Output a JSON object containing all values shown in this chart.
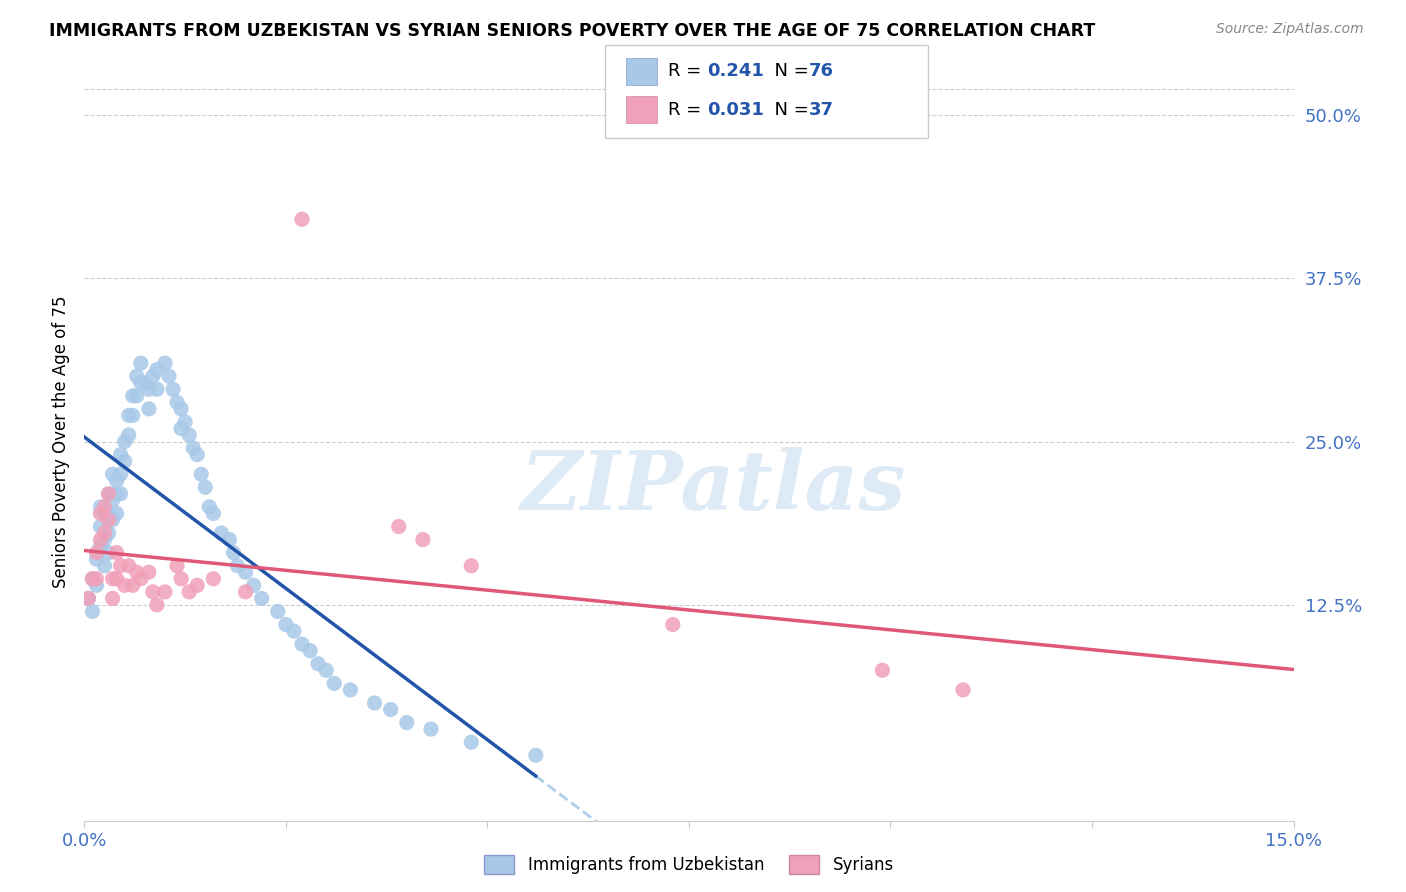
{
  "title": "IMMIGRANTS FROM UZBEKISTAN VS SYRIAN SENIORS POVERTY OVER THE AGE OF 75 CORRELATION CHART",
  "source": "Source: ZipAtlas.com",
  "ylabel": "Seniors Poverty Over the Age of 75",
  "ytick_labels": [
    "12.5%",
    "25.0%",
    "37.5%",
    "50.0%"
  ],
  "ytick_values": [
    0.125,
    0.25,
    0.375,
    0.5
  ],
  "xlim": [
    0.0,
    0.15
  ],
  "ylim": [
    -0.04,
    0.54
  ],
  "uzbekistan_R": 0.241,
  "uzbekistan_N": 76,
  "syrian_R": 0.031,
  "syrian_N": 37,
  "uzbekistan_color": "#a8c8e8",
  "uzbekistan_line_color": "#2255aa",
  "uzbekistan_dash_color": "#a8c8e8",
  "syrian_color": "#f0a0b8",
  "syrian_line_color": "#e05878",
  "watermark": "ZIPatlas",
  "watermark_color": "#c8dff0",
  "legend_title_color": "#2255aa",
  "uzbekistan_x": [
    0.0005,
    0.001,
    0.001,
    0.0015,
    0.0015,
    0.002,
    0.002,
    0.002,
    0.0025,
    0.0025,
    0.0025,
    0.003,
    0.003,
    0.003,
    0.003,
    0.0035,
    0.0035,
    0.0035,
    0.004,
    0.004,
    0.004,
    0.0045,
    0.0045,
    0.0045,
    0.005,
    0.005,
    0.0055,
    0.0055,
    0.006,
    0.006,
    0.0065,
    0.0065,
    0.007,
    0.007,
    0.0075,
    0.008,
    0.008,
    0.0085,
    0.009,
    0.009,
    0.01,
    0.0105,
    0.011,
    0.0115,
    0.012,
    0.012,
    0.0125,
    0.013,
    0.0135,
    0.014,
    0.0145,
    0.015,
    0.0155,
    0.016,
    0.017,
    0.018,
    0.0185,
    0.019,
    0.02,
    0.021,
    0.022,
    0.024,
    0.025,
    0.026,
    0.027,
    0.028,
    0.029,
    0.03,
    0.031,
    0.033,
    0.036,
    0.038,
    0.04,
    0.043,
    0.048,
    0.056
  ],
  "uzbekistan_y": [
    0.13,
    0.145,
    0.12,
    0.16,
    0.14,
    0.2,
    0.185,
    0.17,
    0.195,
    0.175,
    0.155,
    0.21,
    0.195,
    0.18,
    0.165,
    0.225,
    0.205,
    0.19,
    0.22,
    0.21,
    0.195,
    0.24,
    0.225,
    0.21,
    0.25,
    0.235,
    0.27,
    0.255,
    0.285,
    0.27,
    0.3,
    0.285,
    0.31,
    0.295,
    0.295,
    0.29,
    0.275,
    0.3,
    0.305,
    0.29,
    0.31,
    0.3,
    0.29,
    0.28,
    0.275,
    0.26,
    0.265,
    0.255,
    0.245,
    0.24,
    0.225,
    0.215,
    0.2,
    0.195,
    0.18,
    0.175,
    0.165,
    0.155,
    0.15,
    0.14,
    0.13,
    0.12,
    0.11,
    0.105,
    0.095,
    0.09,
    0.08,
    0.075,
    0.065,
    0.06,
    0.05,
    0.045,
    0.035,
    0.03,
    0.02,
    0.01
  ],
  "syrian_x": [
    0.0005,
    0.001,
    0.0015,
    0.0015,
    0.002,
    0.002,
    0.0025,
    0.0025,
    0.003,
    0.003,
    0.0035,
    0.0035,
    0.004,
    0.004,
    0.0045,
    0.005,
    0.0055,
    0.006,
    0.0065,
    0.007,
    0.008,
    0.0085,
    0.009,
    0.01,
    0.0115,
    0.012,
    0.013,
    0.014,
    0.016,
    0.02,
    0.027,
    0.039,
    0.042,
    0.048,
    0.073,
    0.099,
    0.109
  ],
  "syrian_y": [
    0.13,
    0.145,
    0.165,
    0.145,
    0.195,
    0.175,
    0.2,
    0.18,
    0.21,
    0.19,
    0.145,
    0.13,
    0.165,
    0.145,
    0.155,
    0.14,
    0.155,
    0.14,
    0.15,
    0.145,
    0.15,
    0.135,
    0.125,
    0.135,
    0.155,
    0.145,
    0.135,
    0.14,
    0.145,
    0.135,
    0.42,
    0.185,
    0.175,
    0.155,
    0.11,
    0.075,
    0.06
  ],
  "xtick_positions": [
    0.0,
    0.025,
    0.05,
    0.075,
    0.1,
    0.125,
    0.15
  ],
  "xtick_show": {
    "0.0": "0.0%",
    "0.15": "15.0%"
  }
}
